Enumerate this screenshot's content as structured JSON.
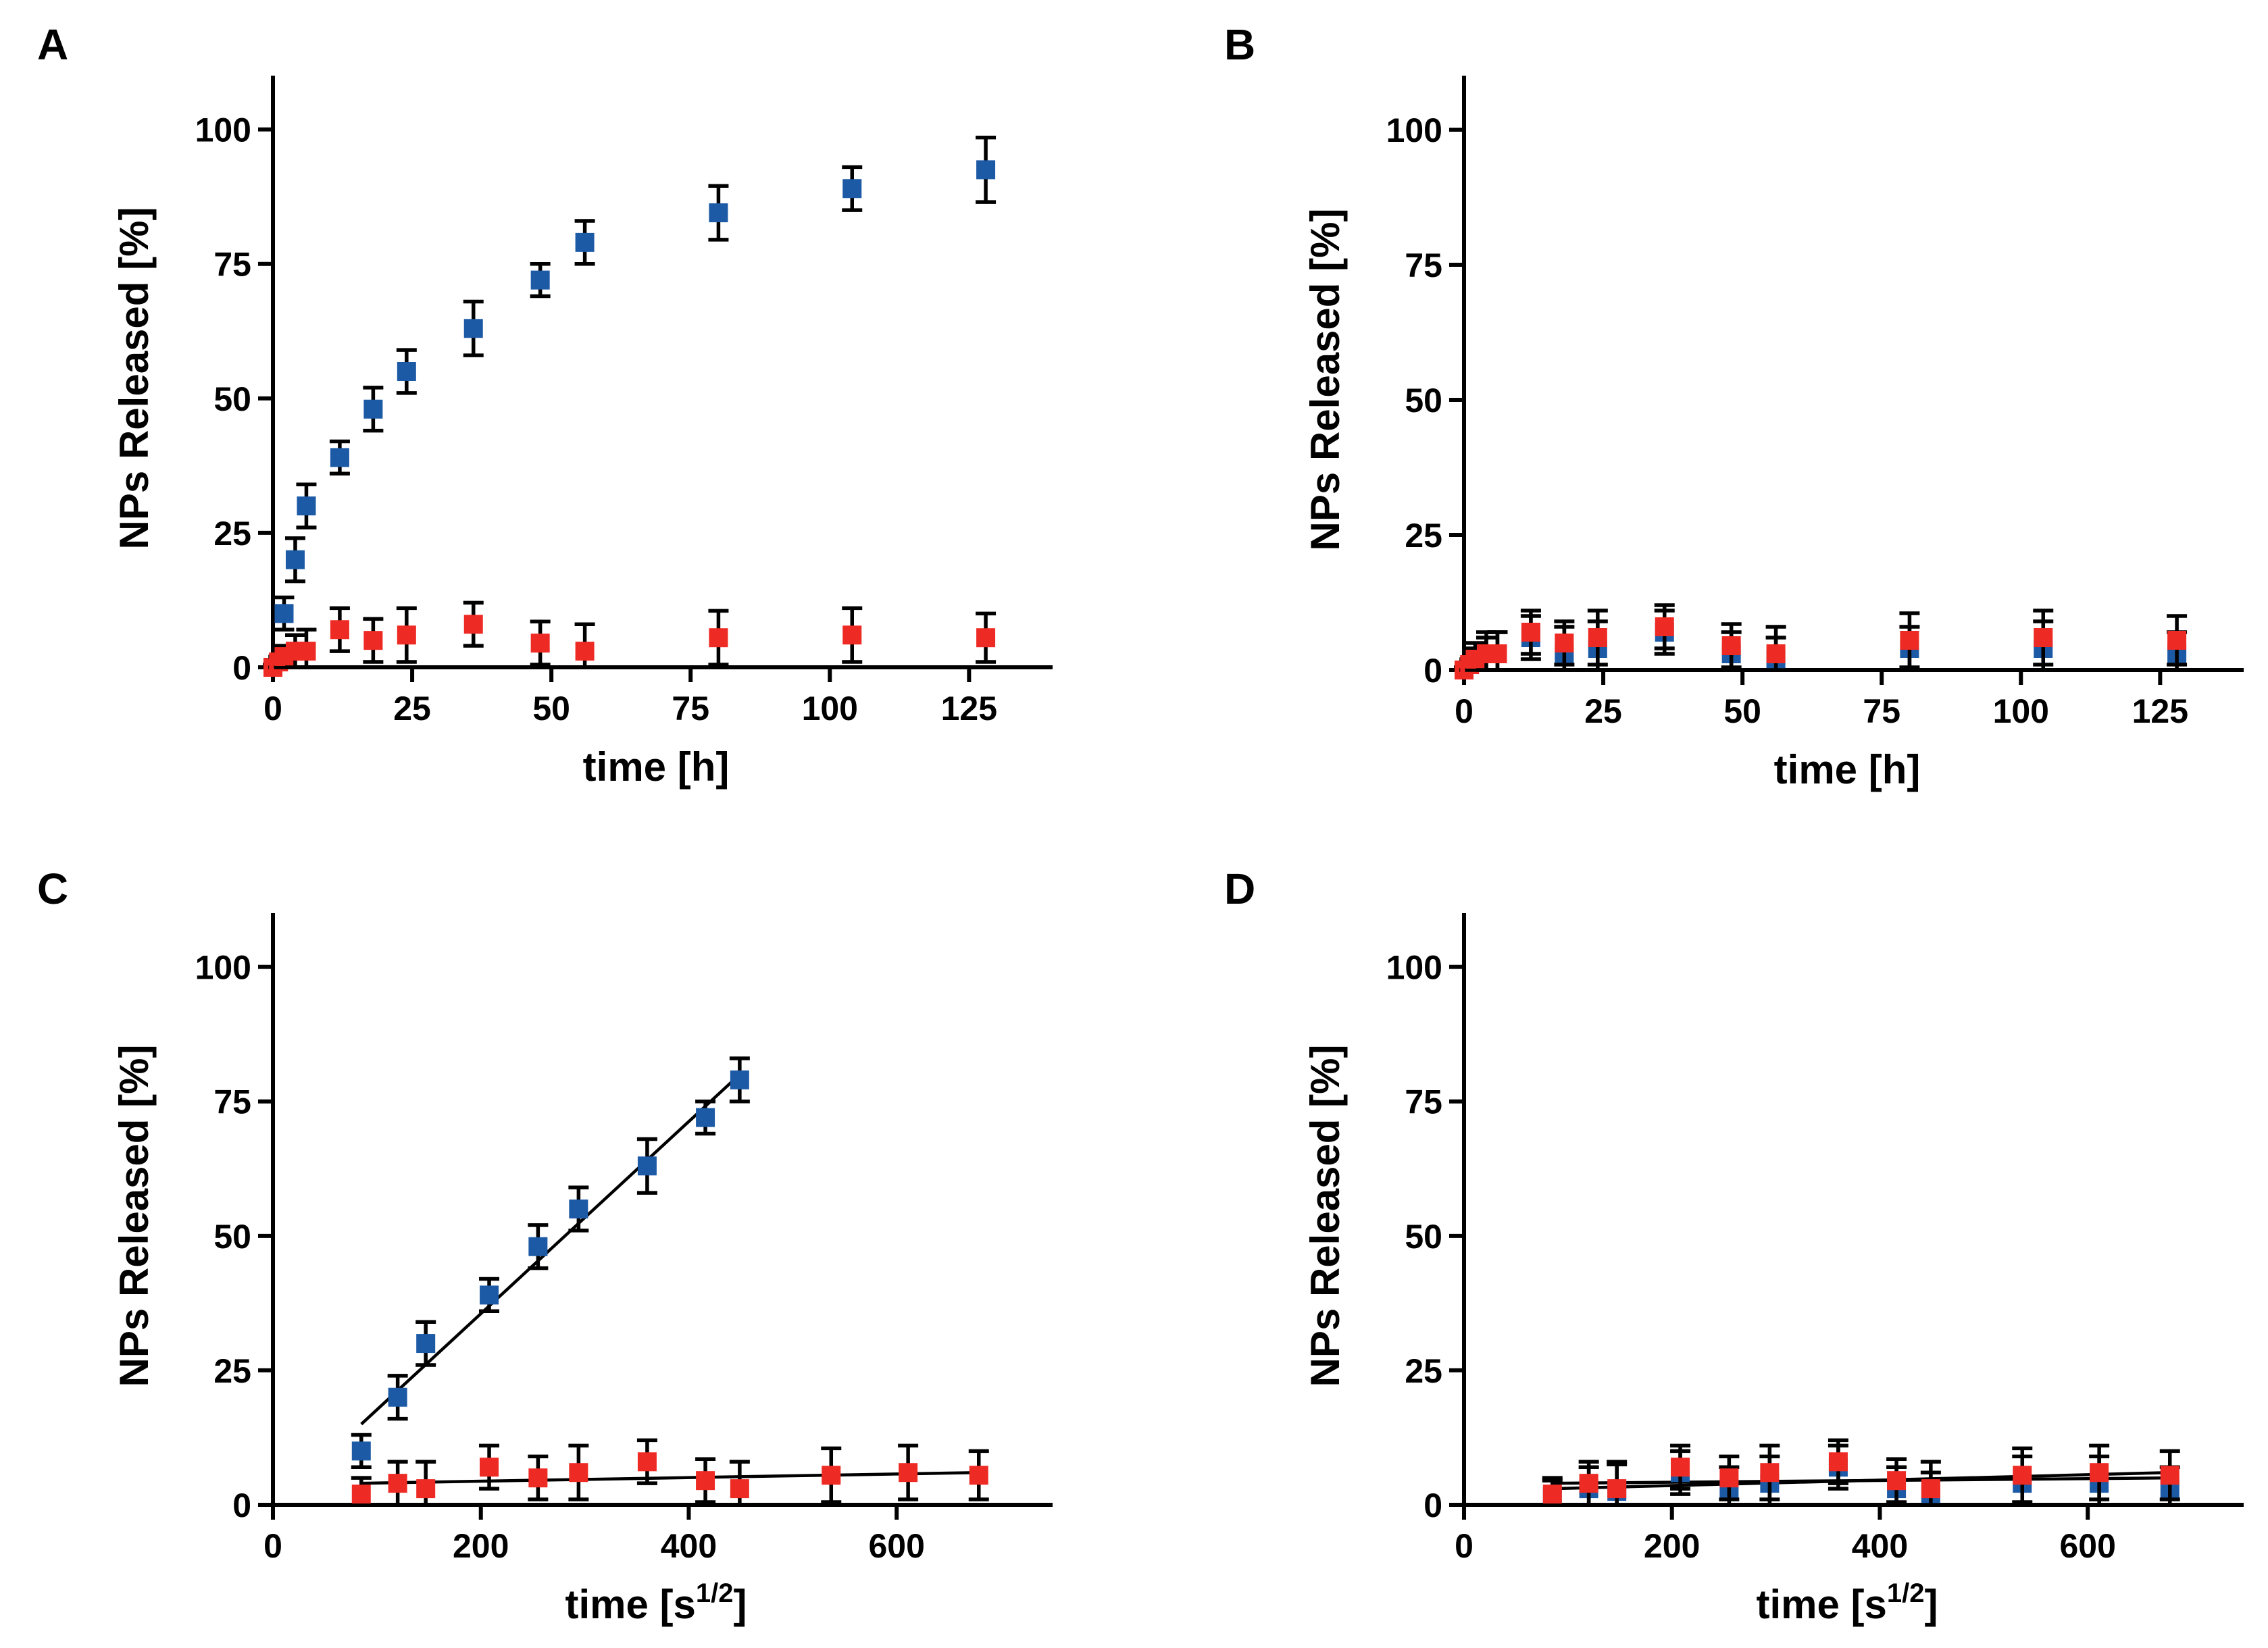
{
  "colors": {
    "series_blue": "#1d5aa6",
    "series_red": "#ee2a24"
  },
  "chart_data": [
    {
      "panel": "A",
      "type": "scatter",
      "xlabel": "time [h]",
      "ylabel": "NPs Released [%]",
      "xlim": [
        0,
        140
      ],
      "ylim": [
        0,
        110
      ],
      "xticks": [
        0,
        25,
        50,
        75,
        100,
        125
      ],
      "yticks": [
        0,
        25,
        50,
        75,
        100
      ],
      "series": [
        {
          "name": "blue",
          "color": "#1d5aa6",
          "x": [
            0,
            2,
            4,
            6,
            12,
            18,
            24,
            36,
            48,
            56,
            80,
            104,
            128
          ],
          "y": [
            0,
            10,
            20,
            30,
            39,
            48,
            55,
            63,
            72,
            79,
            84.5,
            89,
            92.5
          ],
          "err": [
            0.5,
            3,
            4,
            4,
            3,
            4,
            4,
            5,
            3,
            4,
            5,
            4,
            6
          ]
        },
        {
          "name": "red",
          "color": "#ee2a24",
          "x": [
            0,
            1,
            2,
            4,
            6,
            12,
            18,
            24,
            36,
            48,
            56,
            80,
            104,
            128
          ],
          "y": [
            0,
            1,
            2,
            3,
            3,
            7,
            5,
            6,
            8,
            4.5,
            3,
            5.5,
            6,
            5.5
          ],
          "err": [
            0.5,
            1,
            2,
            3,
            4,
            4,
            4,
            5,
            4,
            4,
            5,
            5,
            5,
            4.5
          ]
        }
      ],
      "fits": []
    },
    {
      "panel": "B",
      "type": "scatter",
      "xlabel": "time [h]",
      "ylabel": "NPs Released [%]",
      "xlim": [
        0,
        140
      ],
      "ylim": [
        0,
        110
      ],
      "xticks": [
        0,
        25,
        50,
        75,
        100,
        125
      ],
      "yticks": [
        0,
        25,
        50,
        75,
        100
      ],
      "series": [
        {
          "name": "blue",
          "color": "#1d5aa6",
          "x": [
            0,
            2,
            4,
            6,
            12,
            18,
            24,
            36,
            48,
            56,
            80,
            104,
            128
          ],
          "y": [
            0,
            2,
            3,
            3,
            6,
            3,
            4,
            7,
            3,
            2,
            4,
            4,
            3
          ],
          "err": [
            0.5,
            3,
            4,
            4,
            4,
            5,
            5,
            4,
            4,
            4,
            4,
            5,
            4
          ]
        },
        {
          "name": "red",
          "color": "#ee2a24",
          "x": [
            0,
            1,
            2,
            4,
            6,
            12,
            18,
            24,
            36,
            48,
            56,
            80,
            104,
            128
          ],
          "y": [
            0,
            1,
            2,
            3,
            3,
            7,
            5,
            6,
            8,
            4.5,
            3,
            5.5,
            6,
            5.5
          ],
          "err": [
            0.5,
            1,
            2,
            3,
            4,
            4,
            4,
            5,
            4,
            4,
            5,
            5,
            5,
            4.5
          ]
        }
      ],
      "fits": []
    },
    {
      "panel": "C",
      "type": "scatter",
      "xlabel": "time [s",
      "xlabel_sup": "1/2",
      "xlabel_end": "]",
      "ylabel": "NPs Released [%]",
      "xlim": [
        0,
        750
      ],
      "ylim": [
        0,
        110
      ],
      "xticks": [
        0,
        200,
        400,
        600
      ],
      "yticks": [
        0,
        25,
        50,
        75,
        100
      ],
      "series": [
        {
          "name": "blue",
          "color": "#1d5aa6",
          "x": [
            85,
            120,
            147,
            208,
            255,
            294,
            360,
            416,
            449
          ],
          "y": [
            10,
            20,
            30,
            39,
            48,
            55,
            63,
            72,
            79
          ],
          "err": [
            3,
            4,
            4,
            3,
            4,
            4,
            5,
            3,
            4
          ]
        },
        {
          "name": "red",
          "color": "#ee2a24",
          "x": [
            85,
            120,
            147,
            208,
            255,
            294,
            360,
            416,
            449,
            537,
            611,
            679
          ],
          "y": [
            2,
            4,
            3,
            7,
            5,
            6,
            8,
            4.5,
            3,
            5.5,
            6,
            5.5
          ],
          "err": [
            3,
            4,
            5,
            4,
            4,
            5,
            4,
            4,
            5,
            5,
            5,
            4.5
          ]
        }
      ],
      "fits": [
        {
          "x": [
            85,
            449
          ],
          "y": [
            15,
            80
          ]
        },
        {
          "x": [
            85,
            679
          ],
          "y": [
            4,
            6
          ]
        }
      ]
    },
    {
      "panel": "D",
      "type": "scatter",
      "xlabel": "time [s",
      "xlabel_sup": "1/2",
      "xlabel_end": "]",
      "ylabel": "NPs Released [%]",
      "xlim": [
        0,
        750
      ],
      "ylim": [
        0,
        110
      ],
      "xticks": [
        0,
        200,
        400,
        600
      ],
      "yticks": [
        0,
        25,
        50,
        75,
        100
      ],
      "series": [
        {
          "name": "blue",
          "color": "#1d5aa6",
          "x": [
            85,
            120,
            147,
            208,
            255,
            294,
            360,
            416,
            449,
            537,
            611,
            679
          ],
          "y": [
            1.5,
            3,
            2.5,
            6,
            3,
            4,
            7,
            3,
            2,
            4,
            4,
            3
          ],
          "err": [
            3,
            4,
            5,
            4,
            4,
            5,
            4,
            4,
            4,
            5,
            5,
            4
          ]
        },
        {
          "name": "red",
          "color": "#ee2a24",
          "x": [
            85,
            120,
            147,
            208,
            255,
            294,
            360,
            416,
            449,
            537,
            611,
            679
          ],
          "y": [
            2,
            4,
            3,
            7,
            5,
            6,
            8,
            4.5,
            3,
            5.5,
            6,
            5.5
          ],
          "err": [
            3,
            4,
            5,
            4,
            4,
            5,
            4,
            4,
            5,
            5,
            5,
            4.5
          ]
        }
      ],
      "fits": [
        {
          "x": [
            85,
            679
          ],
          "y": [
            3,
            6
          ]
        },
        {
          "x": [
            85,
            679
          ],
          "y": [
            4,
            5
          ]
        }
      ]
    }
  ]
}
